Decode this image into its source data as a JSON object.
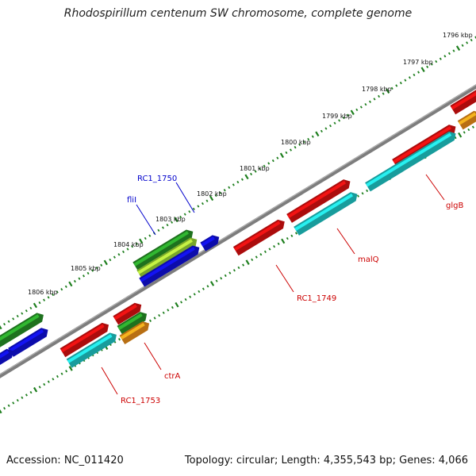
{
  "title": "Rhodospirillum centenum SW chromosome, complete genome",
  "footer": {
    "accession": "Accession: NC_011420",
    "summary": "Topology: circular; Length: 4,355,543 bp; Genes: 4,066"
  },
  "colors": {
    "backbone": "#8a8a8a",
    "ticks": "#1e7f1e",
    "red": "#ee1111",
    "blue": "#1111ee",
    "green": "#2a9d2a",
    "lightgreen": "#a8e83a",
    "cyan": "#22d8d8",
    "orange": "#ff9a1a",
    "label_blue": "#0000cc",
    "label_red": "#cc0000"
  },
  "scale_labels": [
    "1796 kbp",
    "1797 kbp",
    "1798 kbp",
    "1799 kbp",
    "1800 kbp",
    "1801 kbp",
    "1802 kbp",
    "1803 kbp",
    "1804 kbp",
    "1805 kbp",
    "1806 kbp"
  ],
  "gene_labels": [
    {
      "text": "RC1_1750",
      "color": "blue"
    },
    {
      "text": "fliI",
      "color": "blue"
    },
    {
      "text": "glgB",
      "color": "red"
    },
    {
      "text": "malQ",
      "color": "red"
    },
    {
      "text": "RC1_1749",
      "color": "red"
    },
    {
      "text": "ctrA",
      "color": "red"
    },
    {
      "text": "RC1_1753",
      "color": "red"
    }
  ]
}
